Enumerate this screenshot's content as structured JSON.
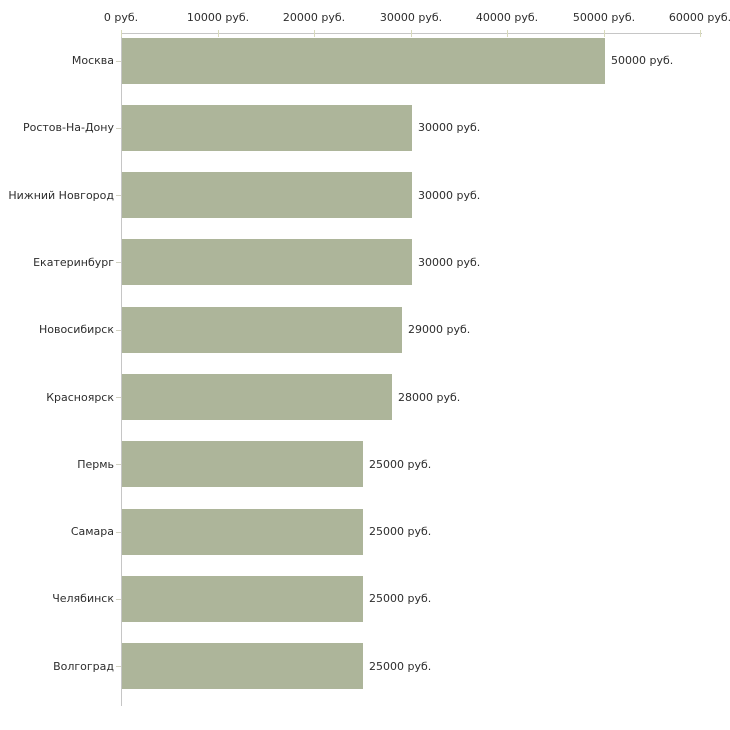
{
  "chart_data": {
    "type": "bar",
    "orientation": "horizontal",
    "title": "",
    "categories": [
      "Москва",
      "Ростов-На-Дону",
      "Нижний Новгород",
      "Екатеринбург",
      "Новосибирск",
      "Красноярск",
      "Пермь",
      "Самара",
      "Челябинск",
      "Волгоград"
    ],
    "values": [
      50000,
      30000,
      30000,
      30000,
      29000,
      28000,
      25000,
      25000,
      25000,
      25000
    ],
    "value_labels": [
      "50000 руб.",
      "30000 руб.",
      "30000 руб.",
      "30000 руб.",
      "29000 руб.",
      "28000 руб.",
      "25000 руб.",
      "25000 руб.",
      "25000 руб.",
      "25000 руб."
    ],
    "unit": "руб.",
    "x_axis": {
      "position": "top",
      "min": 0,
      "max": 60000,
      "ticks": [
        0,
        10000,
        20000,
        30000,
        40000,
        50000,
        60000
      ],
      "tick_labels": [
        "0 руб.",
        "10000 руб.",
        "20000 руб.",
        "30000 руб.",
        "40000 руб.",
        "50000 руб.",
        "60000 руб."
      ]
    },
    "legend": "none",
    "grid": false,
    "colors": {
      "bar": "#adb59a",
      "axis": "#c6c6c6",
      "axis_tick": "#d8dabb",
      "category_tick": "#d2d2c2",
      "text": "#2d2d2d",
      "background": "#ffffff"
    }
  }
}
